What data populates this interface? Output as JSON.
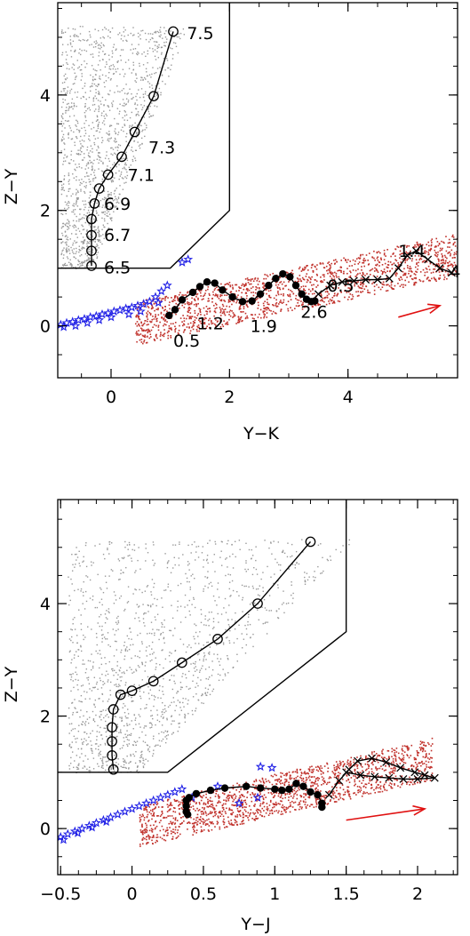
{
  "chart_data": [
    {
      "type": "scatter",
      "title": "",
      "xlabel": "Y−K",
      "ylabel": "Z−Y",
      "xlim": [
        -0.9,
        5.85
      ],
      "ylim": [
        -0.9,
        5.6
      ],
      "xticks": [
        0,
        2,
        4
      ],
      "xtick_labels": [
        "0",
        "2",
        "4"
      ],
      "yticks": [
        0,
        2,
        4
      ],
      "ytick_labels": [
        "0",
        "2",
        "4"
      ],
      "grid": false,
      "colors": {
        "cloud_grey": "#999999",
        "cloud_red": "#c0302a",
        "stars": "#1f1fe6",
        "arrow": "#e01010",
        "track": "#000000"
      },
      "cloud_grey_band": {
        "x_from": -0.85,
        "x_to": 1.3,
        "y_from": 1.0,
        "y_to": 5.2
      },
      "cloud_red_band": {
        "x_from": 0.4,
        "x_to": 5.9,
        "y_from": 0.05,
        "y_to": 1.25
      },
      "selection_box": [
        [
          -0.9,
          1.0
        ],
        [
          1.0,
          1.0
        ],
        [
          2.0,
          2.0
        ],
        [
          2.0,
          5.6
        ]
      ],
      "series": [
        {
          "marker": "open-circle",
          "x": [
            -0.33,
            -0.33,
            -0.33,
            -0.33,
            -0.28,
            -0.2,
            -0.05,
            0.18,
            0.4,
            0.72,
            1.05
          ],
          "y": [
            1.04,
            1.3,
            1.57,
            1.85,
            2.12,
            2.38,
            2.62,
            2.93,
            3.36,
            3.98,
            5.1
          ]
        },
        {
          "marker": "filled-circle",
          "x": [
            0.98,
            1.08,
            1.2,
            1.38,
            1.5,
            1.62,
            1.75,
            1.88,
            2.05,
            2.22,
            2.38,
            2.52,
            2.66,
            2.78,
            2.9,
            3.02,
            3.12,
            3.22,
            3.3,
            3.38,
            3.44
          ],
          "y": [
            0.18,
            0.28,
            0.45,
            0.58,
            0.68,
            0.76,
            0.74,
            0.62,
            0.5,
            0.42,
            0.43,
            0.55,
            0.7,
            0.82,
            0.9,
            0.85,
            0.7,
            0.55,
            0.46,
            0.42,
            0.43
          ]
        },
        {
          "marker": "cross",
          "x": [
            3.5,
            3.7,
            3.9,
            4.1,
            4.3,
            4.5,
            4.7,
            4.85,
            5.0,
            5.15,
            5.35,
            5.55,
            5.75
          ],
          "y": [
            0.55,
            0.7,
            0.76,
            0.78,
            0.8,
            0.8,
            0.82,
            1.0,
            1.22,
            1.3,
            1.15,
            1.0,
            0.92
          ]
        }
      ],
      "stars": {
        "x": [
          -0.85,
          -0.75,
          -0.65,
          -0.55,
          -0.45,
          -0.35,
          -0.25,
          -0.15,
          -0.05,
          0.05,
          0.15,
          0.25,
          0.35,
          0.45,
          0.55,
          0.65,
          0.75,
          0.85,
          0.95,
          -0.8,
          -0.6,
          -0.4,
          -0.2,
          0.0,
          0.3,
          0.5,
          0.8,
          1.2,
          1.3
        ],
        "y": [
          0.02,
          0.05,
          0.07,
          0.1,
          0.12,
          0.15,
          0.17,
          0.2,
          0.22,
          0.25,
          0.27,
          0.3,
          0.32,
          0.35,
          0.38,
          0.42,
          0.5,
          0.6,
          0.7,
          -0.02,
          0.0,
          0.05,
          0.1,
          0.15,
          0.2,
          0.25,
          0.4,
          1.1,
          1.15
        ]
      },
      "arrow": {
        "x1": 4.85,
        "y1": 0.15,
        "x2": 5.55,
        "y2": 0.35
      },
      "annotations": [
        {
          "text": "7.5",
          "x": 1.28,
          "y": 5.08
        },
        {
          "text": "7.3",
          "x": 0.63,
          "y": 3.1
        },
        {
          "text": "7.1",
          "x": 0.28,
          "y": 2.62
        },
        {
          "text": "6.9",
          "x": -0.12,
          "y": 2.12
        },
        {
          "text": "6.7",
          "x": -0.12,
          "y": 1.58
        },
        {
          "text": "6.5",
          "x": -0.12,
          "y": 1.02
        },
        {
          "text": "1.2",
          "x": 1.45,
          "y": 0.05
        },
        {
          "text": "1.9",
          "x": 2.35,
          "y": 0.0
        },
        {
          "text": "2.6",
          "x": 3.2,
          "y": 0.25
        },
        {
          "text": "0.5",
          "x": 1.05,
          "y": -0.25
        },
        {
          "text": "0.5",
          "x": 3.65,
          "y": 0.7
        },
        {
          "text": "1.4",
          "x": 4.85,
          "y": 1.3
        },
        {
          "text": "4",
          "x": 5.72,
          "y": 0.95
        }
      ]
    },
    {
      "type": "scatter",
      "title": "",
      "xlabel": "Y−J",
      "ylabel": "Z−Y",
      "xlim": [
        -0.52,
        2.28
      ],
      "ylim": [
        -0.82,
        5.85
      ],
      "xticks": [
        -0.5,
        0,
        0.5,
        1,
        1.5,
        2
      ],
      "xtick_labels": [
        "−0.5",
        "0",
        "0.5",
        "1",
        "1.5",
        "2"
      ],
      "yticks": [
        0,
        2,
        4
      ],
      "ytick_labels": [
        "0",
        "2",
        "4"
      ],
      "grid": false,
      "colors": {
        "cloud_grey": "#999999",
        "cloud_red": "#c0302a",
        "stars": "#1f1fe6",
        "arrow": "#e01010",
        "track": "#000000"
      },
      "cloud_grey_band": {
        "x_from": -0.45,
        "x_to": 1.55,
        "y_from": 1.0,
        "y_to": 5.15
      },
      "cloud_red_band": {
        "x_from": 0.05,
        "x_to": 2.1,
        "y_from": 0.05,
        "y_to": 1.25
      },
      "selection_box": [
        [
          -0.52,
          1.0
        ],
        [
          0.25,
          1.0
        ],
        [
          1.5,
          3.5
        ],
        [
          1.5,
          5.85
        ]
      ],
      "series": [
        {
          "marker": "open-circle",
          "x": [
            -0.13,
            -0.14,
            -0.14,
            -0.14,
            -0.13,
            -0.08,
            0.0,
            0.15,
            0.35,
            0.6,
            0.88,
            1.25
          ],
          "y": [
            1.05,
            1.3,
            1.55,
            1.8,
            2.12,
            2.38,
            2.45,
            2.62,
            2.95,
            3.37,
            4.0,
            5.1
          ]
        },
        {
          "marker": "filled-circle",
          "x": [
            0.38,
            0.38,
            0.38,
            0.39,
            0.4,
            0.45,
            0.55,
            0.65,
            0.8,
            0.9,
            1.0,
            1.05,
            1.1,
            1.15,
            1.2,
            1.25,
            1.3,
            1.33,
            1.33
          ],
          "y": [
            0.5,
            0.4,
            0.3,
            0.25,
            0.55,
            0.62,
            0.68,
            0.72,
            0.75,
            0.72,
            0.7,
            0.68,
            0.7,
            0.8,
            0.75,
            0.65,
            0.6,
            0.45,
            0.38
          ]
        },
        {
          "marker": "cross",
          "x": [
            1.38,
            1.45,
            1.52,
            1.58,
            1.68,
            1.78,
            1.88,
            1.98,
            2.05,
            2.12,
            2.0,
            1.9,
            1.8,
            1.7,
            1.6,
            1.5
          ],
          "y": [
            0.6,
            0.85,
            1.05,
            1.2,
            1.25,
            1.18,
            1.08,
            1.0,
            0.95,
            0.9,
            0.88,
            0.88,
            0.9,
            0.92,
            0.95,
            1.0
          ]
        }
      ],
      "stars": {
        "x": [
          -0.5,
          -0.45,
          -0.4,
          -0.35,
          -0.3,
          -0.25,
          -0.2,
          -0.15,
          -0.1,
          -0.05,
          0.0,
          0.05,
          0.1,
          0.15,
          0.2,
          0.25,
          0.3,
          0.35,
          -0.48,
          -0.38,
          -0.28,
          -0.18,
          0.42,
          0.6,
          0.88,
          0.9,
          0.98,
          0.75
        ],
        "y": [
          -0.15,
          -0.1,
          -0.05,
          0.0,
          0.05,
          0.1,
          0.15,
          0.2,
          0.25,
          0.3,
          0.35,
          0.4,
          0.45,
          0.5,
          0.55,
          0.6,
          0.65,
          0.7,
          -0.2,
          -0.08,
          0.02,
          0.12,
          0.55,
          0.75,
          0.55,
          1.1,
          1.08,
          0.45
        ]
      },
      "arrow": {
        "x1": 1.5,
        "y1": 0.15,
        "x2": 2.05,
        "y2": 0.35
      },
      "annotations": []
    }
  ]
}
